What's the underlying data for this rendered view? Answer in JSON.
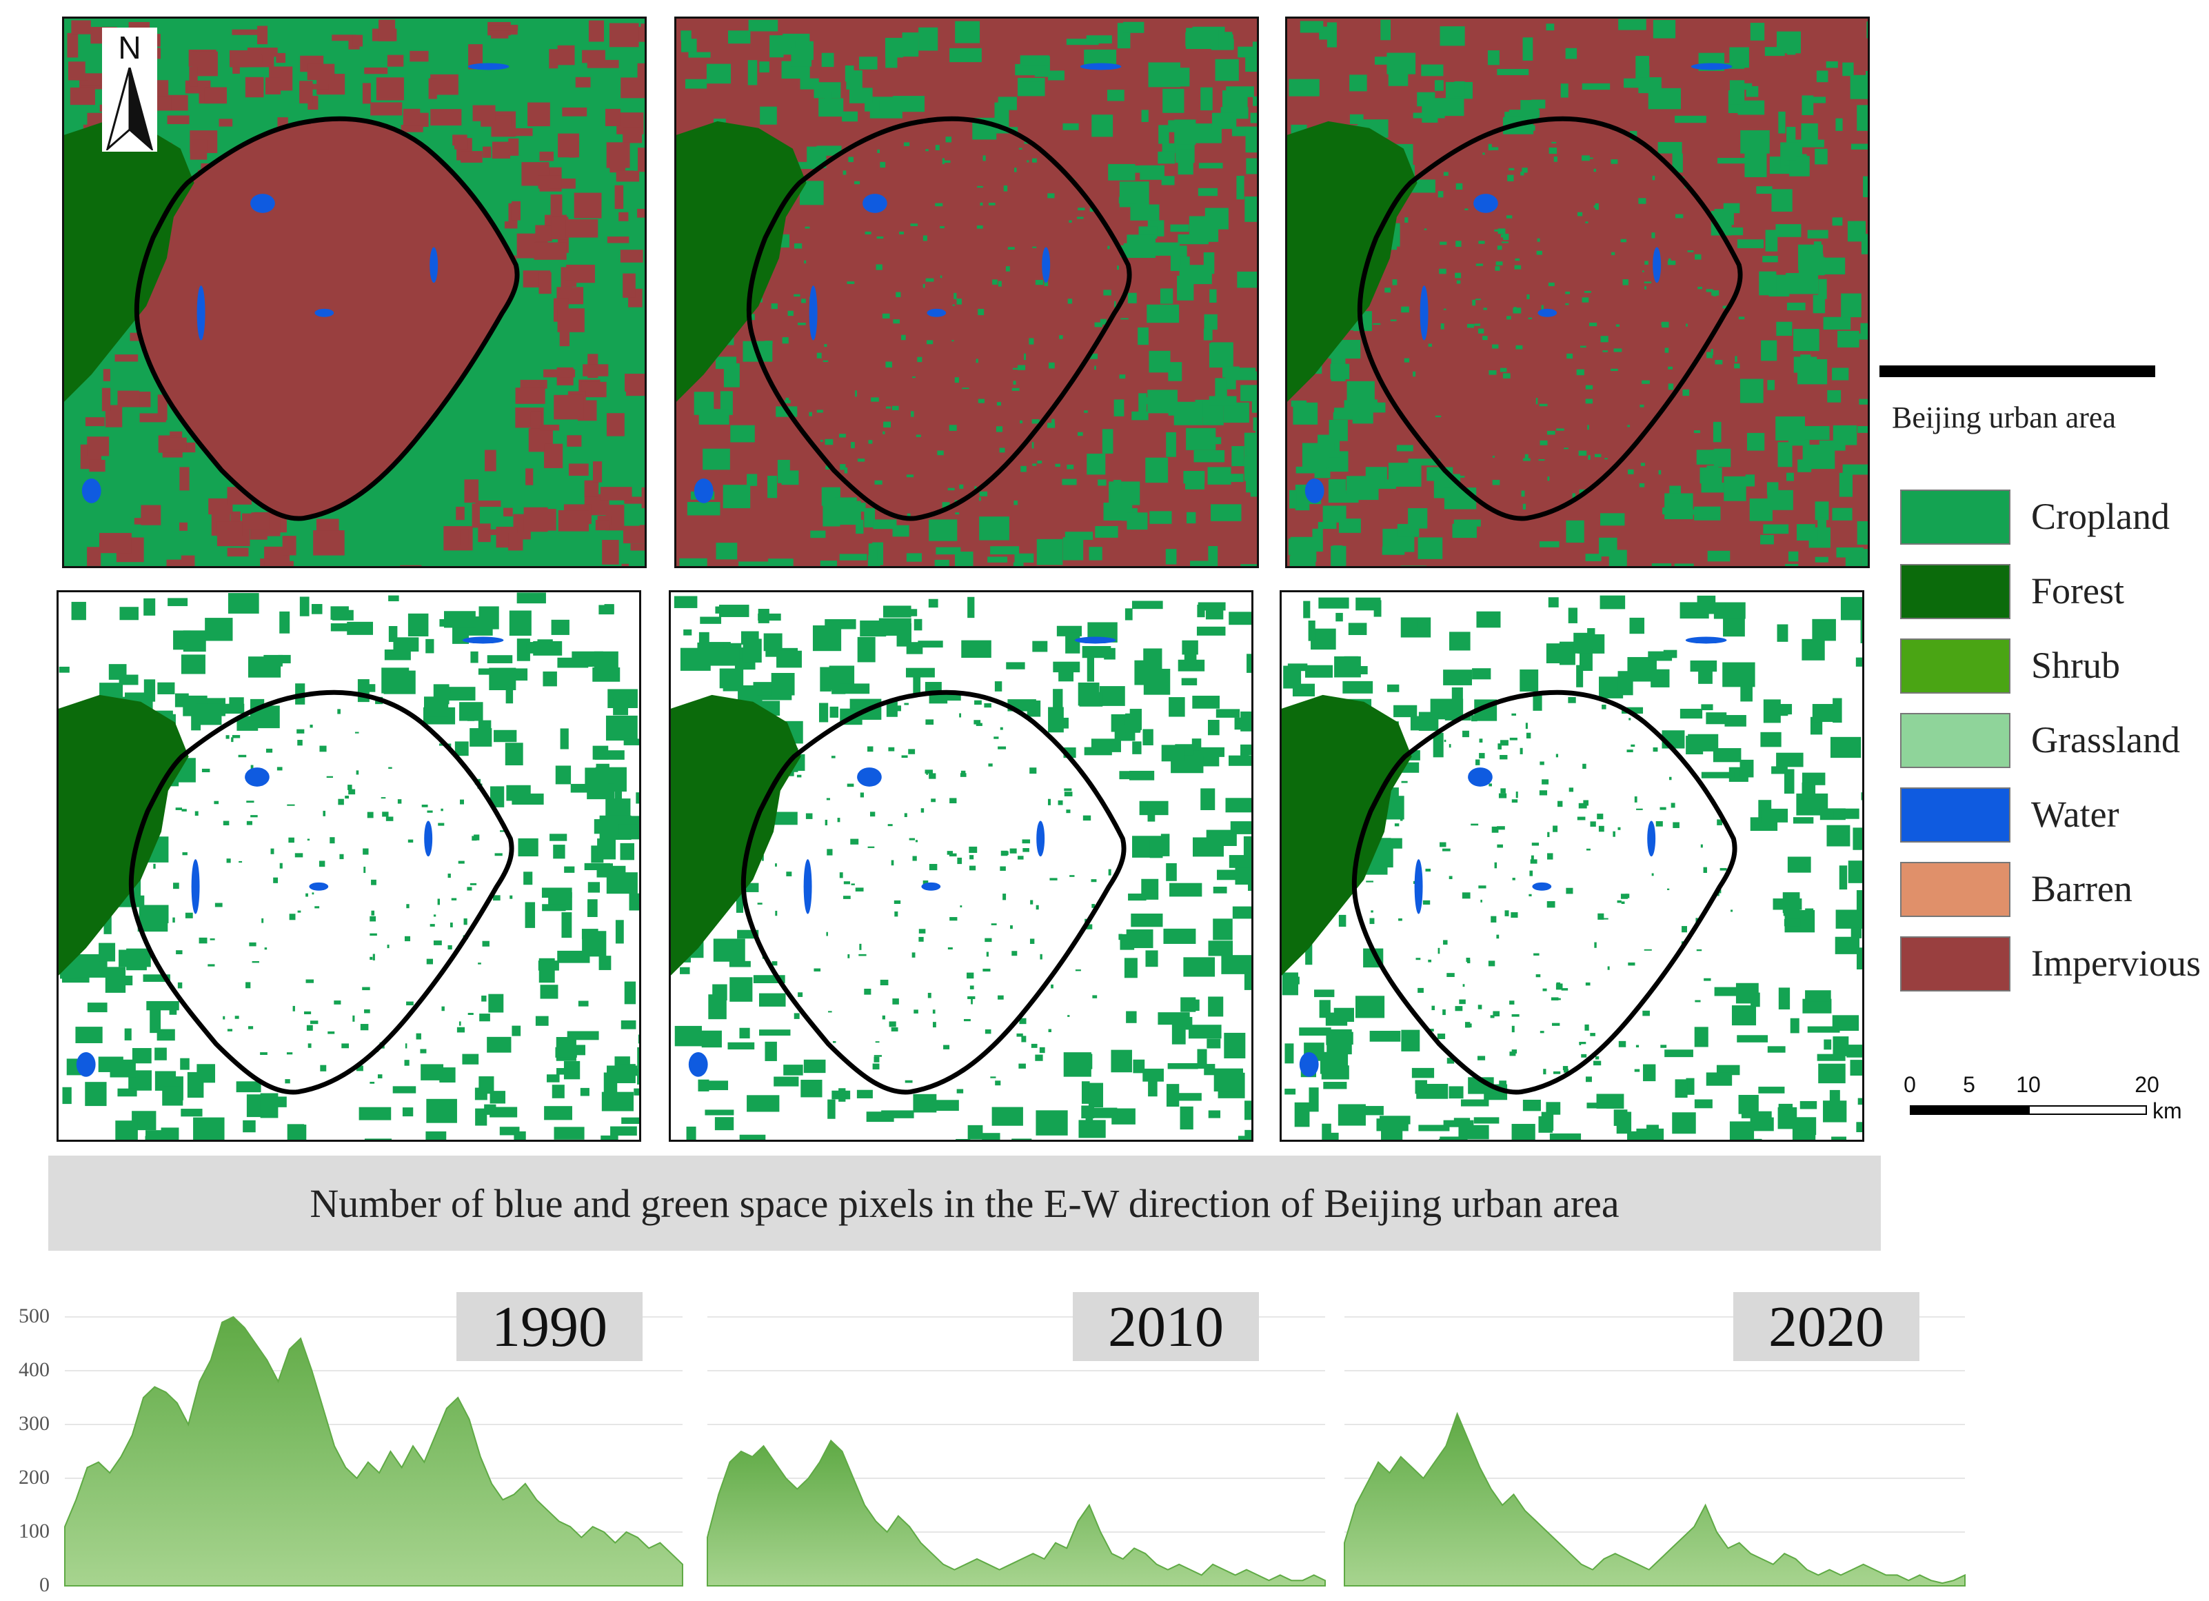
{
  "maps": {
    "north_label": "N",
    "panels": [
      {
        "row": "land-cover",
        "year": "1990"
      },
      {
        "row": "land-cover",
        "year": "2010"
      },
      {
        "row": "land-cover",
        "year": "2020"
      },
      {
        "row": "blue-green",
        "year": "1990"
      },
      {
        "row": "blue-green",
        "year": "2010"
      },
      {
        "row": "blue-green",
        "year": "2020"
      }
    ]
  },
  "legend": {
    "urban_area_label": "Beijing urban area",
    "items": [
      {
        "label": "Cropland",
        "color": "#14a352"
      },
      {
        "label": "Forest",
        "color": "#0b6b0b"
      },
      {
        "label": "Shrub",
        "color": "#4aa514"
      },
      {
        "label": "Grassland",
        "color": "#8fd49a"
      },
      {
        "label": "Water",
        "color": "#0f5be0"
      },
      {
        "label": "Barren",
        "color": "#e0906a"
      },
      {
        "label": "Impervious",
        "color": "#993f3f"
      }
    ]
  },
  "scale_bar": {
    "ticks": [
      "0",
      "5",
      "10",
      "20"
    ],
    "unit": "km"
  },
  "colors": {
    "impervious": "#993f3f",
    "cropland": "#14a352",
    "forest": "#0b6b0b",
    "water": "#0f5be0",
    "area_fill_top": "#5faa45",
    "area_fill_bottom": "#a7d48f"
  },
  "banner": {
    "text": "Number of blue and green space pixels in the E-W direction of Beijing urban area"
  },
  "chart_data": {
    "type": "area",
    "y_ticks": [
      "0",
      "100",
      "200",
      "300",
      "400",
      "500"
    ],
    "ylim": [
      0,
      500
    ],
    "grid": true,
    "series": [
      {
        "name": "1990",
        "values": [
          110,
          160,
          220,
          230,
          210,
          240,
          280,
          350,
          370,
          360,
          340,
          300,
          380,
          420,
          490,
          500,
          480,
          450,
          420,
          380,
          440,
          460,
          400,
          330,
          260,
          220,
          200,
          230,
          210,
          250,
          220,
          260,
          230,
          280,
          330,
          350,
          310,
          240,
          190,
          160,
          170,
          190,
          160,
          140,
          120,
          110,
          90,
          110,
          100,
          80,
          100,
          90,
          70,
          80,
          60,
          40
        ]
      },
      {
        "name": "2010",
        "values": [
          90,
          170,
          230,
          250,
          240,
          260,
          230,
          200,
          180,
          200,
          230,
          270,
          250,
          200,
          150,
          120,
          100,
          130,
          110,
          80,
          60,
          40,
          30,
          40,
          50,
          40,
          30,
          40,
          50,
          60,
          50,
          80,
          70,
          120,
          150,
          100,
          60,
          50,
          70,
          60,
          40,
          30,
          40,
          30,
          20,
          40,
          30,
          20,
          30,
          20,
          10,
          20,
          10,
          10,
          20,
          10
        ]
      },
      {
        "name": "2020",
        "values": [
          80,
          150,
          190,
          230,
          210,
          240,
          220,
          200,
          230,
          260,
          320,
          270,
          220,
          180,
          150,
          170,
          140,
          120,
          100,
          80,
          60,
          40,
          30,
          50,
          60,
          50,
          40,
          30,
          50,
          70,
          90,
          110,
          150,
          100,
          70,
          80,
          60,
          50,
          40,
          60,
          50,
          30,
          20,
          30,
          20,
          30,
          40,
          30,
          20,
          20,
          10,
          20,
          10,
          5,
          10,
          20
        ]
      }
    ]
  }
}
